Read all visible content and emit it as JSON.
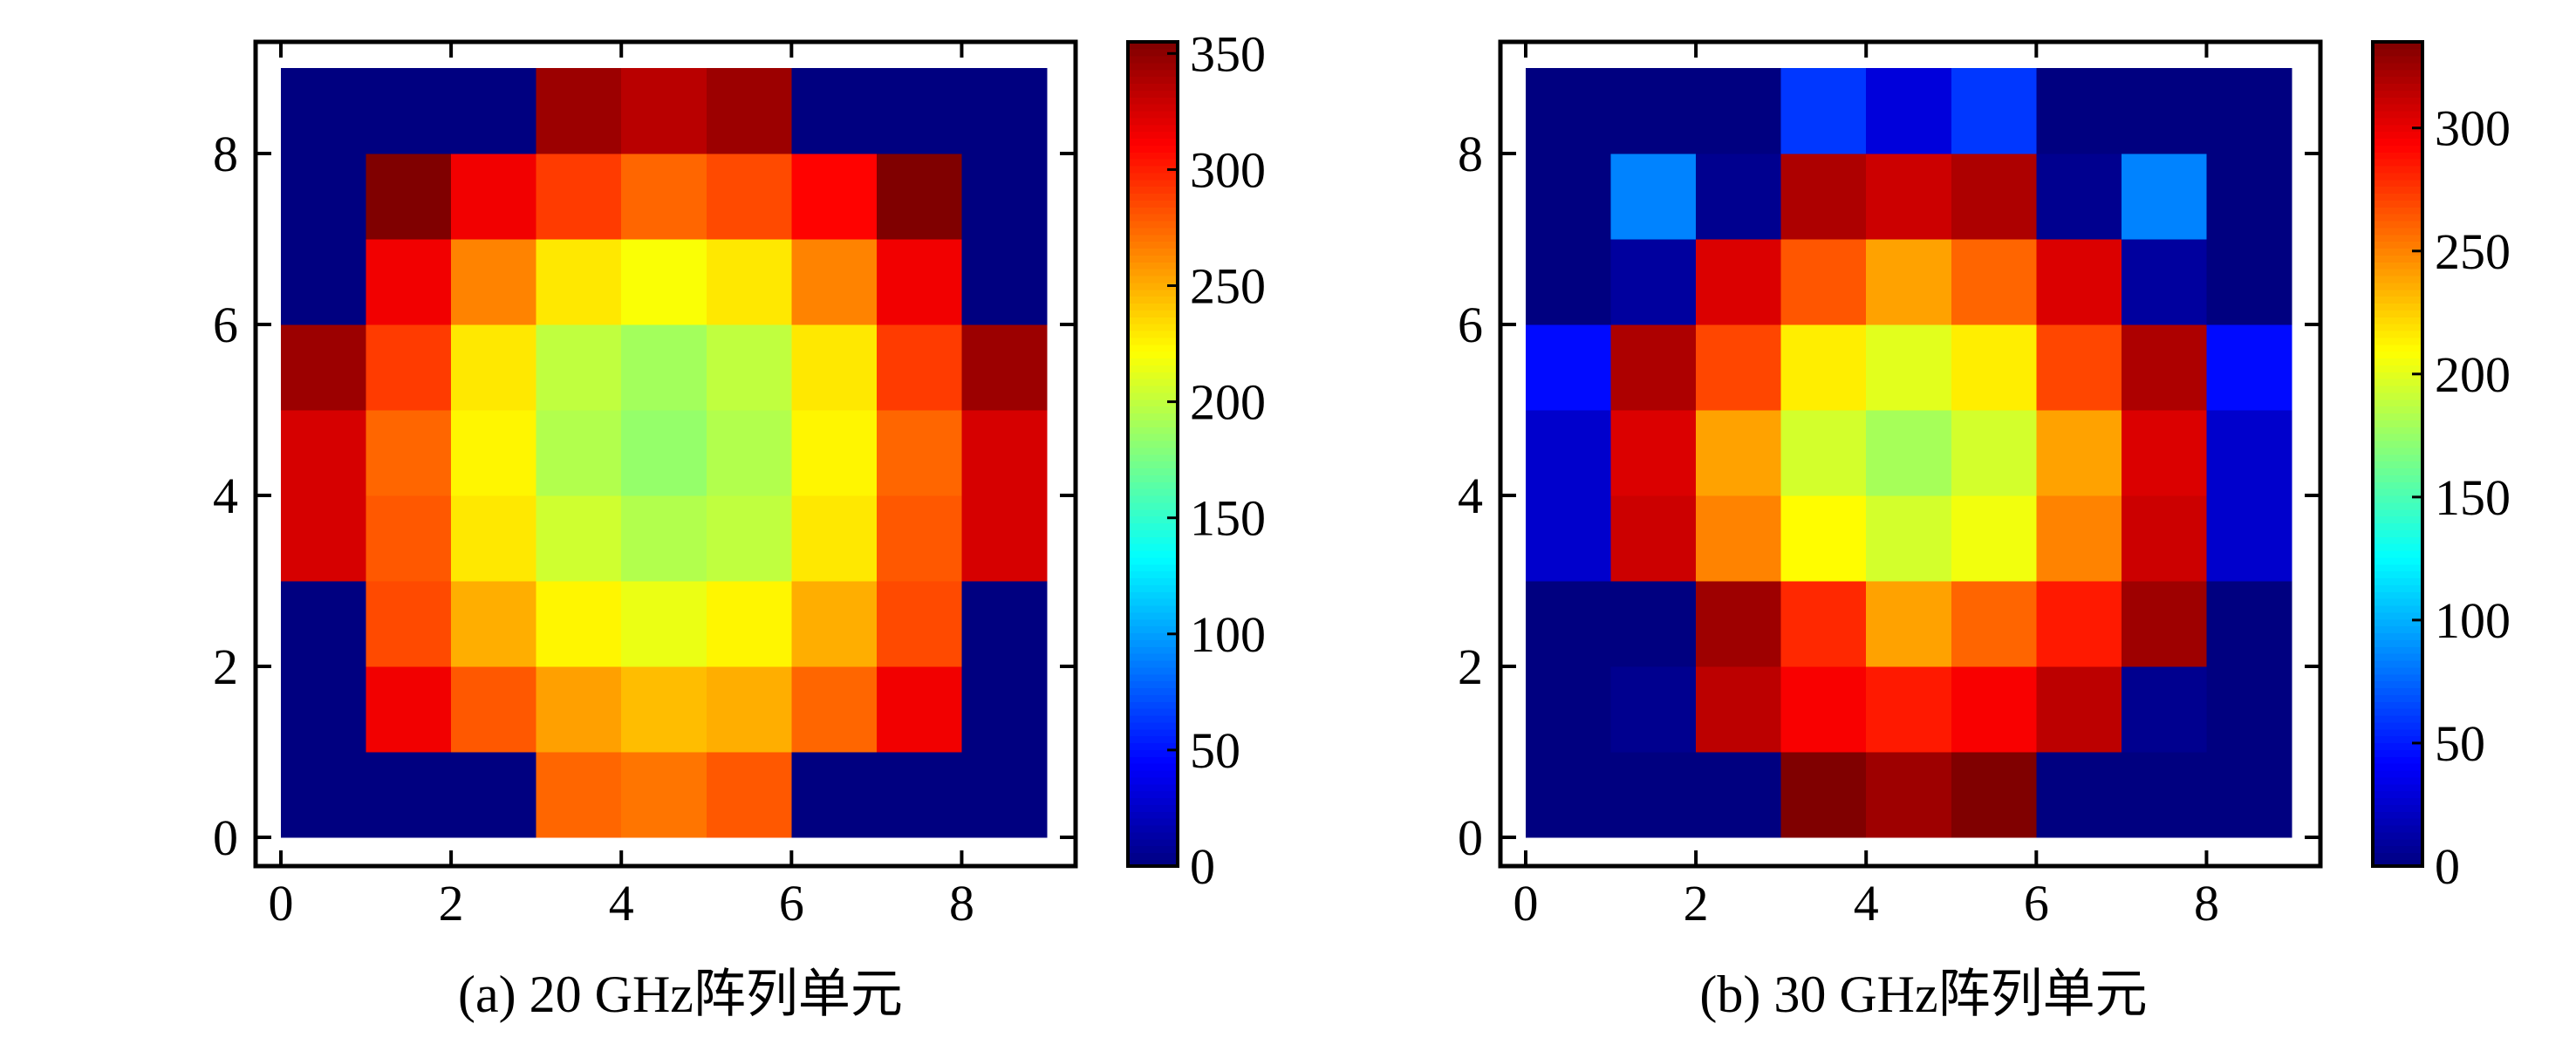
{
  "chart_data": [
    {
      "type": "heatmap",
      "caption": "(a) 20 GHz阵列单元",
      "xlim": [
        0,
        9
      ],
      "ylim": [
        0,
        9
      ],
      "x_ticks": [
        0,
        2,
        4,
        6,
        8
      ],
      "y_ticks": [
        0,
        2,
        4,
        6,
        8
      ],
      "colorbar": {
        "range": [
          0,
          355
        ],
        "ticks": [
          0,
          50,
          100,
          150,
          200,
          250,
          300,
          350
        ],
        "colormap": "jet"
      },
      "rows_bottom_to_top": [
        [
          0,
          0,
          0,
          275,
          270,
          280,
          0,
          0,
          0
        ],
        [
          0,
          315,
          280,
          255,
          245,
          250,
          275,
          315,
          0
        ],
        [
          0,
          285,
          250,
          225,
          215,
          225,
          250,
          285,
          0
        ],
        [
          325,
          280,
          230,
          205,
          195,
          200,
          230,
          280,
          325
        ],
        [
          325,
          275,
          225,
          195,
          185,
          195,
          225,
          275,
          325
        ],
        [
          345,
          290,
          230,
          200,
          190,
          200,
          230,
          290,
          345
        ],
        [
          0,
          315,
          265,
          230,
          220,
          230,
          265,
          315,
          0
        ],
        [
          0,
          355,
          315,
          290,
          275,
          285,
          310,
          355,
          0
        ],
        [
          0,
          0,
          0,
          345,
          335,
          345,
          0,
          0,
          0
        ]
      ]
    },
    {
      "type": "heatmap",
      "caption": "(b) 30 GHz阵列单元",
      "xlim": [
        0,
        9
      ],
      "ylim": [
        0,
        9
      ],
      "x_ticks": [
        0,
        2,
        4,
        6,
        8
      ],
      "y_ticks": [
        0,
        2,
        4,
        6,
        8
      ],
      "colorbar": {
        "range": [
          0,
          335
        ],
        "ticks": [
          0,
          50,
          100,
          150,
          200,
          250,
          300
        ],
        "colormap": "jet"
      },
      "rows_bottom_to_top": [
        [
          0,
          0,
          0,
          335,
          325,
          335,
          0,
          0,
          0
        ],
        [
          0,
          5,
          315,
          295,
          285,
          295,
          315,
          5,
          0
        ],
        [
          0,
          0,
          325,
          280,
          240,
          260,
          285,
          325,
          0
        ],
        [
          25,
          310,
          250,
          210,
          195,
          205,
          250,
          310,
          25
        ],
        [
          25,
          305,
          240,
          195,
          180,
          195,
          240,
          305,
          25
        ],
        [
          45,
          320,
          270,
          215,
          200,
          215,
          270,
          320,
          45
        ],
        [
          0,
          10,
          305,
          265,
          240,
          260,
          305,
          10,
          0
        ],
        [
          0,
          85,
          5,
          320,
          310,
          320,
          5,
          85,
          0
        ],
        [
          0,
          0,
          0,
          60,
          30,
          60,
          0,
          0,
          0
        ]
      ]
    }
  ]
}
